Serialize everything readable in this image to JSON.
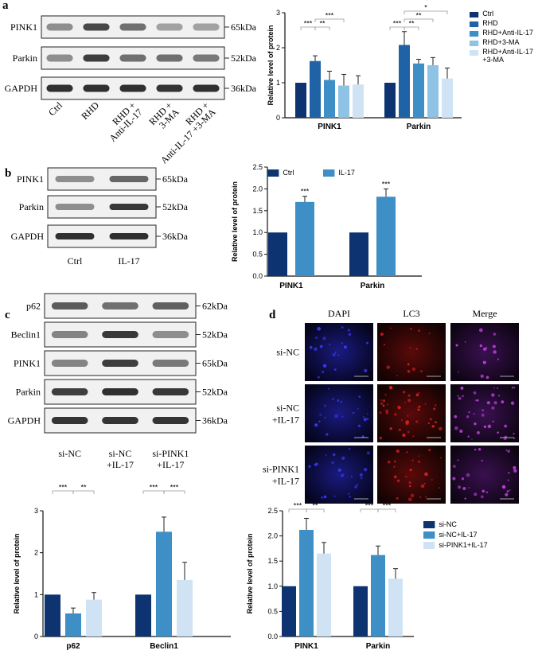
{
  "panels": {
    "a": "a",
    "b": "b",
    "c": "c",
    "d": "d"
  },
  "colors": {
    "ctrl": "#0d3470",
    "rhd": "#1f63a6",
    "anti": "#3d8fc6",
    "ma": "#8ec3e6",
    "combo": "#cfe3f4",
    "b_ctrl": "#0d3470",
    "b_il17": "#3d8fc6",
    "c_sinc": "#0d3470",
    "c_sincil": "#3d8fc6",
    "c_sipink": "#cfe3f4"
  },
  "blots": {
    "a": {
      "rows": [
        {
          "label": "PINK1",
          "size": "65kDa"
        },
        {
          "label": "Parkin",
          "size": "52kDa"
        },
        {
          "label": "GAPDH",
          "size": "36kDa"
        }
      ],
      "lanes": [
        [
          "Ctrl"
        ],
        [
          "RHD"
        ],
        [
          "RHD +",
          "Anti-IL-17"
        ],
        [
          "RHD +",
          "3-MA"
        ],
        [
          "RHD +",
          "Anti-IL-17 +3-MA"
        ]
      ]
    },
    "b": {
      "rows": [
        {
          "label": "PINK1",
          "size": "65kDa"
        },
        {
          "label": "Parkin",
          "size": "52kDa"
        },
        {
          "label": "GAPDH",
          "size": "36kDa"
        }
      ],
      "lanes": [
        [
          "Ctrl"
        ],
        [
          "IL-17"
        ]
      ]
    },
    "c": {
      "rows": [
        {
          "label": "p62",
          "size": "62kDa"
        },
        {
          "label": "Beclin1",
          "size": "52kDa"
        },
        {
          "label": "PINK1",
          "size": "65kDa"
        },
        {
          "label": "Parkin",
          "size": "52kDa"
        },
        {
          "label": "GAPDH",
          "size": "36kDa"
        }
      ],
      "lanes": [
        [
          "si-NC"
        ],
        [
          "si-NC",
          "+IL-17"
        ],
        [
          "si-PINK1",
          "+IL-17"
        ]
      ]
    }
  },
  "fluorescence": {
    "columns": [
      "DAPI",
      "LC3",
      "Merge"
    ],
    "rows": [
      [
        "si-NC"
      ],
      [
        "si-NC",
        "+IL-17"
      ],
      [
        "si-PINK1",
        "+IL-17"
      ]
    ]
  },
  "chart_data": [
    {
      "id": "a",
      "type": "bar",
      "ylabel": "Relative level of protein",
      "ylim": [
        0,
        3
      ],
      "yticks": [
        "0",
        "1",
        "2",
        "3"
      ],
      "categories": [
        "PINK1",
        "Parkin"
      ],
      "series": [
        {
          "name": "Ctrl",
          "values": [
            1.0,
            1.0
          ],
          "errors": [
            0,
            0
          ]
        },
        {
          "name": "RHD",
          "values": [
            1.62,
            2.08
          ],
          "errors": [
            0.15,
            0.38
          ]
        },
        {
          "name": "RHD+Anti-IL-17",
          "values": [
            1.08,
            1.55
          ],
          "errors": [
            0.25,
            0.12
          ]
        },
        {
          "name": "RHD+3-MA",
          "values": [
            0.92,
            1.5
          ],
          "errors": [
            0.32,
            0.22
          ]
        },
        {
          "name": "RHD+Anti-IL-17 +3-MA",
          "values": [
            0.95,
            1.12
          ],
          "errors": [
            0.25,
            0.3
          ]
        }
      ],
      "legend_position": "right",
      "significance": [
        {
          "cat": 0,
          "from": 0,
          "to": 1,
          "label": "***",
          "level": 0
        },
        {
          "cat": 0,
          "from": 1,
          "to": 2,
          "label": "**",
          "level": 0
        },
        {
          "cat": 0,
          "from": 1,
          "to": 3,
          "label": "***",
          "level": 1
        },
        {
          "cat": 1,
          "from": 0,
          "to": 1,
          "label": "***",
          "level": 0
        },
        {
          "cat": 1,
          "from": 1,
          "to": 2,
          "label": "**",
          "level": 0
        },
        {
          "cat": 1,
          "from": 1,
          "to": 3,
          "label": "**",
          "level": 1
        },
        {
          "cat": 1,
          "from": 1,
          "to": 4,
          "label": "*",
          "level": 2
        }
      ]
    },
    {
      "id": "b",
      "type": "bar",
      "ylabel": "Relative level of protein",
      "ylim": [
        0,
        2.5
      ],
      "yticks": [
        "0.0",
        "0.5",
        "1.0",
        "1.5",
        "2.0",
        "2.5"
      ],
      "categories": [
        "PINK1",
        "Parkin"
      ],
      "series": [
        {
          "name": "Ctrl",
          "values": [
            1.0,
            1.0
          ],
          "errors": [
            0,
            0
          ]
        },
        {
          "name": "IL-17",
          "values": [
            1.7,
            1.82
          ],
          "errors": [
            0.13,
            0.18
          ]
        }
      ],
      "legend_position": "top",
      "stars": [
        {
          "cat": 0,
          "series": 1,
          "label": "***"
        },
        {
          "cat": 1,
          "series": 1,
          "label": "***"
        }
      ]
    },
    {
      "id": "c1",
      "type": "bar",
      "ylabel": "Relative level of protein",
      "ylim": [
        0,
        3
      ],
      "yticks": [
        "0",
        "1",
        "2",
        "3"
      ],
      "categories": [
        "p62",
        "Beclin1"
      ],
      "series": [
        {
          "name": "si-NC",
          "values": [
            1.0,
            1.0
          ],
          "errors": [
            0,
            0
          ]
        },
        {
          "name": "si-NC+IL-17",
          "values": [
            0.55,
            2.5
          ],
          "errors": [
            0.13,
            0.35
          ]
        },
        {
          "name": "si-PINK1+IL-17",
          "values": [
            0.88,
            1.35
          ],
          "errors": [
            0.17,
            0.42
          ]
        }
      ],
      "significance": [
        {
          "cat": 0,
          "from": 0,
          "to": 1,
          "label": "***",
          "level": 0
        },
        {
          "cat": 0,
          "from": 1,
          "to": 2,
          "label": "**",
          "level": 0
        },
        {
          "cat": 1,
          "from": 0,
          "to": 1,
          "label": "***",
          "level": 0
        },
        {
          "cat": 1,
          "from": 1,
          "to": 2,
          "label": "***",
          "level": 0
        }
      ]
    },
    {
      "id": "c2",
      "type": "bar",
      "ylabel": "Relative level of protein",
      "ylim": [
        0,
        2.5
      ],
      "yticks": [
        "0.0",
        "0.5",
        "1.0",
        "1.5",
        "2.0",
        "2.5"
      ],
      "categories": [
        "PINK1",
        "Parkin"
      ],
      "series": [
        {
          "name": "si-NC",
          "values": [
            1.0,
            1.0
          ],
          "errors": [
            0,
            0
          ]
        },
        {
          "name": "si-NC+IL-17",
          "values": [
            2.12,
            1.62
          ],
          "errors": [
            0.23,
            0.18
          ]
        },
        {
          "name": "si-PINK1+IL-17",
          "values": [
            1.65,
            1.15
          ],
          "errors": [
            0.22,
            0.2
          ]
        }
      ],
      "legend_position": "right",
      "significance": [
        {
          "cat": 0,
          "from": 0,
          "to": 1,
          "label": "***",
          "level": 0
        },
        {
          "cat": 0,
          "from": 1,
          "to": 2,
          "label": "**",
          "level": 0
        },
        {
          "cat": 1,
          "from": 0,
          "to": 1,
          "label": "***",
          "level": 0
        },
        {
          "cat": 1,
          "from": 1,
          "to": 2,
          "label": "***",
          "level": 0
        }
      ]
    }
  ]
}
